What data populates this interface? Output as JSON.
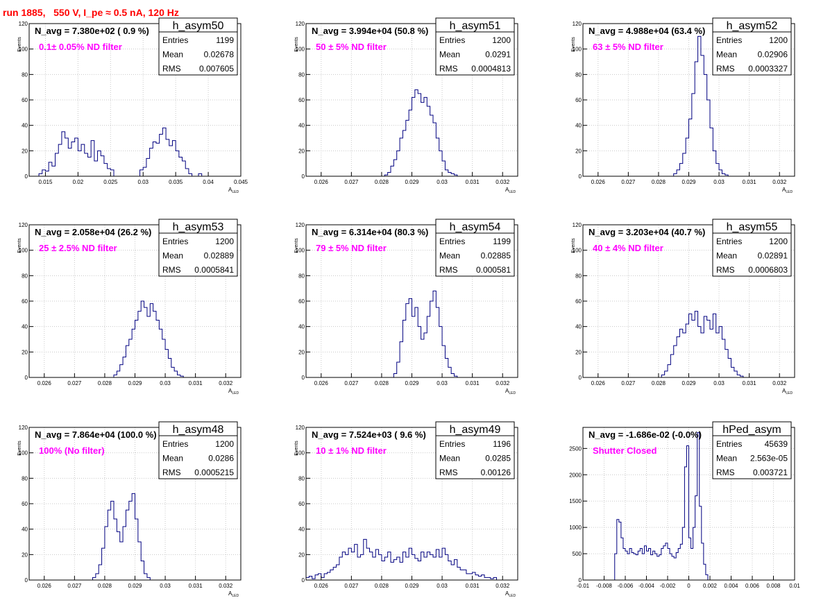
{
  "run_title": "run 1885,   550 V, I_pe ≈ 0.5 nA, 120 Hz",
  "chart_data": [
    {
      "type": "histogram",
      "name": "h_asym50",
      "navg_label": "N_avg = 7.380e+02 ( 0.9 %)",
      "filter_label": "0.1± 0.05% ND filter",
      "stats": [
        [
          "Entries",
          "1199"
        ],
        [
          "Mean",
          "0.02678"
        ],
        [
          "RMS",
          "0.007605"
        ]
      ],
      "ylabel": "Events",
      "xlabel": "A_LED",
      "xlim": [
        0.0125,
        0.045
      ],
      "ylim": [
        0,
        120
      ],
      "xticks": [
        0.015,
        0.02,
        0.025,
        0.03,
        0.035,
        0.04,
        0.045
      ],
      "xtick_labels": [
        "0.015",
        "0.02",
        "0.025",
        "0.03",
        "0.035",
        "0.04",
        "0.045"
      ],
      "yticks": [
        0,
        20,
        40,
        60,
        80,
        100,
        120
      ],
      "ytick_labels": [
        "0",
        "20",
        "40",
        "60",
        "80",
        "100",
        "120"
      ],
      "bin_start": 0.0125,
      "bin_width": 0.0005,
      "counts": [
        0,
        0,
        0,
        2,
        5,
        4,
        11,
        8,
        18,
        25,
        35,
        30,
        22,
        27,
        30,
        20,
        25,
        18,
        15,
        28,
        12,
        20,
        16,
        10,
        6,
        5,
        0,
        0,
        0,
        0,
        0,
        0,
        0,
        0,
        5,
        7,
        14,
        22,
        27,
        26,
        33,
        38,
        29,
        24,
        28,
        20,
        15,
        12,
        6,
        2,
        0,
        0,
        2,
        0,
        0,
        0,
        0,
        0,
        0,
        0,
        0,
        0,
        0,
        0,
        0
      ]
    },
    {
      "type": "histogram",
      "name": "h_asym51",
      "navg_label": "N_avg = 3.994e+04 (50.8 %)",
      "filter_label": "50 ± 5% ND filter",
      "stats": [
        [
          "Entries",
          "1200"
        ],
        [
          "Mean",
          "0.0291"
        ],
        [
          "RMS",
          "0.0004813"
        ]
      ],
      "ylabel": "Events",
      "xlabel": "A_LED",
      "xlim": [
        0.0255,
        0.0325
      ],
      "ylim": [
        0,
        120
      ],
      "xticks": [
        0.026,
        0.027,
        0.028,
        0.029,
        0.03,
        0.031,
        0.032
      ],
      "xtick_labels": [
        "0.026",
        "0.027",
        "0.028",
        "0.029",
        "0.03",
        "0.031",
        "0.032"
      ],
      "yticks": [
        0,
        20,
        40,
        60,
        80,
        100,
        120
      ],
      "ytick_labels": [
        "0",
        "20",
        "40",
        "60",
        "80",
        "100",
        "120"
      ],
      "bin_start": 0.0255,
      "bin_width": 0.0001,
      "counts": [
        0,
        0,
        0,
        0,
        0,
        0,
        0,
        0,
        0,
        0,
        0,
        0,
        0,
        0,
        0,
        0,
        0,
        0,
        0,
        0,
        0,
        0,
        0,
        0,
        0,
        0,
        1,
        3,
        8,
        13,
        20,
        30,
        36,
        44,
        52,
        62,
        68,
        65,
        58,
        62,
        55,
        48,
        42,
        30,
        20,
        12,
        5,
        3,
        2,
        1,
        0,
        0,
        0,
        0,
        0,
        0,
        0,
        0,
        0,
        0,
        0,
        0,
        0,
        0,
        0,
        0,
        0,
        0,
        0,
        0
      ]
    },
    {
      "type": "histogram",
      "name": "h_asym52",
      "navg_label": "N_avg = 4.988e+04 (63.4 %)",
      "filter_label": "63 ± 5% ND filter",
      "stats": [
        [
          "Entries",
          "1200"
        ],
        [
          "Mean",
          "0.02906"
        ],
        [
          "RMS",
          "0.0003327"
        ]
      ],
      "ylabel": "Events",
      "xlabel": "A_LED",
      "xlim": [
        0.0255,
        0.0325
      ],
      "ylim": [
        0,
        120
      ],
      "xticks": [
        0.026,
        0.027,
        0.028,
        0.029,
        0.03,
        0.031,
        0.032
      ],
      "xtick_labels": [
        "0.026",
        "0.027",
        "0.028",
        "0.029",
        "0.03",
        "0.031",
        "0.032"
      ],
      "yticks": [
        0,
        20,
        40,
        60,
        80,
        100,
        120
      ],
      "ytick_labels": [
        "0",
        "20",
        "40",
        "60",
        "80",
        "100",
        "120"
      ],
      "bin_start": 0.0255,
      "bin_width": 0.0001,
      "counts": [
        0,
        0,
        0,
        0,
        0,
        0,
        0,
        0,
        0,
        0,
        0,
        0,
        0,
        0,
        0,
        0,
        0,
        0,
        0,
        0,
        0,
        0,
        0,
        0,
        0,
        0,
        0,
        0,
        0,
        0,
        2,
        5,
        10,
        18,
        30,
        45,
        65,
        90,
        110,
        95,
        80,
        60,
        38,
        20,
        10,
        5,
        2,
        1,
        0,
        0,
        0,
        0,
        0,
        0,
        0,
        0,
        0,
        0,
        0,
        0,
        0,
        0,
        0,
        0,
        0,
        0,
        0,
        0,
        0,
        0
      ]
    },
    {
      "type": "histogram",
      "name": "h_asym53",
      "navg_label": "N_avg = 2.058e+04 (26.2 %)",
      "filter_label": "25 ± 2.5% ND filter",
      "stats": [
        [
          "Entries",
          "1200"
        ],
        [
          "Mean",
          "0.02889"
        ],
        [
          "RMS",
          "0.0005841"
        ]
      ],
      "ylabel": "Events",
      "xlabel": "A_LED",
      "xlim": [
        0.0255,
        0.0325
      ],
      "ylim": [
        0,
        120
      ],
      "xticks": [
        0.026,
        0.027,
        0.028,
        0.029,
        0.03,
        0.031,
        0.032
      ],
      "xtick_labels": [
        "0.026",
        "0.027",
        "0.028",
        "0.029",
        "0.03",
        "0.031",
        "0.032"
      ],
      "yticks": [
        0,
        20,
        40,
        60,
        80,
        100,
        120
      ],
      "ytick_labels": [
        "0",
        "20",
        "40",
        "60",
        "80",
        "100",
        "120"
      ],
      "bin_start": 0.0255,
      "bin_width": 0.0001,
      "counts": [
        0,
        0,
        0,
        0,
        0,
        0,
        0,
        0,
        0,
        0,
        0,
        0,
        0,
        0,
        0,
        0,
        0,
        0,
        0,
        0,
        0,
        0,
        0,
        0,
        0,
        0,
        0,
        0,
        2,
        5,
        10,
        16,
        25,
        30,
        38,
        45,
        52,
        60,
        55,
        48,
        58,
        52,
        45,
        38,
        30,
        22,
        15,
        8,
        5,
        2,
        1,
        0,
        0,
        0,
        0,
        0,
        0,
        0,
        0,
        0,
        0,
        0,
        0,
        0,
        0,
        0,
        0,
        0,
        0,
        0
      ]
    },
    {
      "type": "histogram",
      "name": "h_asym54",
      "navg_label": "N_avg = 6.314e+04 (80.3 %)",
      "filter_label": "79 ± 5% ND filter",
      "stats": [
        [
          "Entries",
          "1199"
        ],
        [
          "Mean",
          "0.02885"
        ],
        [
          "RMS",
          "0.000581"
        ]
      ],
      "ylabel": "Events",
      "xlabel": "A_LED",
      "xlim": [
        0.0255,
        0.0325
      ],
      "ylim": [
        0,
        120
      ],
      "xticks": [
        0.026,
        0.027,
        0.028,
        0.029,
        0.03,
        0.031,
        0.032
      ],
      "xtick_labels": [
        "0.026",
        "0.027",
        "0.028",
        "0.029",
        "0.03",
        "0.031",
        "0.032"
      ],
      "yticks": [
        0,
        20,
        40,
        60,
        80,
        100,
        120
      ],
      "ytick_labels": [
        "0",
        "20",
        "40",
        "60",
        "80",
        "100",
        "120"
      ],
      "bin_start": 0.0255,
      "bin_width": 0.0001,
      "counts": [
        0,
        0,
        0,
        0,
        0,
        0,
        0,
        0,
        0,
        0,
        0,
        0,
        0,
        0,
        0,
        0,
        0,
        0,
        0,
        0,
        0,
        0,
        0,
        0,
        0,
        0,
        0,
        0,
        0,
        3,
        12,
        28,
        45,
        58,
        62,
        48,
        55,
        40,
        30,
        35,
        48,
        60,
        68,
        55,
        40,
        25,
        15,
        8,
        3,
        1,
        0,
        0,
        0,
        0,
        0,
        0,
        0,
        0,
        0,
        0,
        0,
        0,
        0,
        0,
        0,
        0,
        0,
        0,
        0,
        0
      ]
    },
    {
      "type": "histogram",
      "name": "h_asym55",
      "navg_label": "N_avg = 3.203e+04 (40.7 %)",
      "filter_label": "40 ± 4% ND filter",
      "stats": [
        [
          "Entries",
          "1200"
        ],
        [
          "Mean",
          "0.02891"
        ],
        [
          "RMS",
          "0.0006803"
        ]
      ],
      "ylabel": "Events",
      "xlabel": "A_LED",
      "xlim": [
        0.0255,
        0.0325
      ],
      "ylim": [
        0,
        120
      ],
      "xticks": [
        0.026,
        0.027,
        0.028,
        0.029,
        0.03,
        0.031,
        0.032
      ],
      "xtick_labels": [
        "0.026",
        "0.027",
        "0.028",
        "0.029",
        "0.03",
        "0.031",
        "0.032"
      ],
      "yticks": [
        0,
        20,
        40,
        60,
        80,
        100,
        120
      ],
      "ytick_labels": [
        "0",
        "20",
        "40",
        "60",
        "80",
        "100",
        "120"
      ],
      "bin_start": 0.0255,
      "bin_width": 0.0001,
      "counts": [
        0,
        0,
        0,
        0,
        0,
        0,
        0,
        0,
        0,
        0,
        0,
        0,
        0,
        0,
        0,
        0,
        0,
        0,
        0,
        0,
        0,
        0,
        0,
        0,
        0,
        0,
        2,
        5,
        10,
        18,
        25,
        32,
        38,
        35,
        42,
        50,
        45,
        52,
        40,
        35,
        48,
        45,
        38,
        50,
        35,
        40,
        30,
        22,
        15,
        8,
        5,
        2,
        1,
        0,
        0,
        0,
        0,
        0,
        0,
        0,
        0,
        0,
        0,
        0,
        0,
        0,
        0,
        0,
        0,
        0
      ]
    },
    {
      "type": "histogram",
      "name": "h_asym48",
      "navg_label": "N_avg = 7.864e+04 (100.0 %)",
      "filter_label": "100% (No filter)",
      "stats": [
        [
          "Entries",
          "1200"
        ],
        [
          "Mean",
          "0.0286"
        ],
        [
          "RMS",
          "0.0005215"
        ]
      ],
      "ylabel": "Events",
      "xlabel": "A_LED",
      "xlim": [
        0.0255,
        0.0325
      ],
      "ylim": [
        0,
        120
      ],
      "xticks": [
        0.026,
        0.027,
        0.028,
        0.029,
        0.03,
        0.031,
        0.032
      ],
      "xtick_labels": [
        "0.026",
        "0.027",
        "0.028",
        "0.029",
        "0.03",
        "0.031",
        "0.032"
      ],
      "yticks": [
        0,
        20,
        40,
        60,
        80,
        100,
        120
      ],
      "ytick_labels": [
        "0",
        "20",
        "40",
        "60",
        "80",
        "100",
        "120"
      ],
      "bin_start": 0.0255,
      "bin_width": 0.0001,
      "counts": [
        0,
        0,
        0,
        0,
        0,
        0,
        0,
        0,
        0,
        0,
        0,
        0,
        0,
        0,
        0,
        0,
        0,
        0,
        0,
        0,
        0,
        2,
        5,
        12,
        25,
        42,
        55,
        62,
        48,
        38,
        30,
        42,
        55,
        62,
        68,
        48,
        30,
        15,
        5,
        2,
        0,
        0,
        0,
        0,
        0,
        0,
        0,
        0,
        0,
        0,
        0,
        0,
        0,
        0,
        0,
        0,
        0,
        0,
        0,
        0,
        0,
        0,
        0,
        0,
        0,
        0,
        0,
        0,
        0,
        0
      ]
    },
    {
      "type": "histogram",
      "name": "h_asym49",
      "navg_label": "N_avg = 7.524e+03 ( 9.6 %)",
      "filter_label": "10 ± 1% ND filter",
      "stats": [
        [
          "Entries",
          "1196"
        ],
        [
          "Mean",
          "0.0285"
        ],
        [
          "RMS",
          "0.00126"
        ]
      ],
      "ylabel": "Events",
      "xlabel": "A_LED",
      "xlim": [
        0.0255,
        0.0325
      ],
      "ylim": [
        0,
        120
      ],
      "xticks": [
        0.026,
        0.027,
        0.028,
        0.029,
        0.03,
        0.031,
        0.032
      ],
      "xtick_labels": [
        "0.026",
        "0.027",
        "0.028",
        "0.029",
        "0.03",
        "0.031",
        "0.032"
      ],
      "yticks": [
        0,
        20,
        40,
        60,
        80,
        100,
        120
      ],
      "ytick_labels": [
        "0",
        "20",
        "40",
        "60",
        "80",
        "100",
        "120"
      ],
      "bin_start": 0.0255,
      "bin_width": 0.0001,
      "counts": [
        2,
        3,
        1,
        4,
        5,
        2,
        5,
        6,
        8,
        10,
        12,
        18,
        22,
        20,
        25,
        22,
        28,
        18,
        20,
        32,
        25,
        22,
        18,
        24,
        20,
        15,
        18,
        22,
        14,
        16,
        18,
        14,
        22,
        18,
        25,
        20,
        17,
        15,
        22,
        18,
        22,
        20,
        18,
        24,
        18,
        25,
        20,
        15,
        12,
        16,
        10,
        8,
        8,
        5,
        5,
        6,
        4,
        3,
        4,
        2,
        2,
        1,
        2,
        0,
        0,
        0,
        0,
        0,
        0,
        0
      ]
    },
    {
      "type": "histogram",
      "name": "hPed_asym",
      "navg_label": "N_avg = -1.686e-02 (-0.0%)",
      "filter_label": "Shutter Closed",
      "stats": [
        [
          "Entries",
          "45639"
        ],
        [
          "Mean",
          "2.563e-05"
        ],
        [
          "RMS",
          "0.003721"
        ]
      ],
      "ylabel": "",
      "xlabel": "",
      "xlim": [
        -0.01,
        0.01
      ],
      "ylim": [
        0,
        2900
      ],
      "xticks": [
        -0.01,
        -0.008,
        -0.006,
        -0.004,
        -0.002,
        0,
        0.002,
        0.004,
        0.006,
        0.008,
        0.01
      ],
      "xtick_labels": [
        "-0.01",
        "-0.008",
        "-0.006",
        "-0.004",
        "-0.002",
        "0",
        "0.002",
        "0.004",
        "0.006",
        "0.008",
        "0.01"
      ],
      "yticks": [
        0,
        500,
        1000,
        1500,
        2000,
        2500
      ],
      "ytick_labels": [
        "0",
        "500",
        "1000",
        "1500",
        "2000",
        "2500"
      ],
      "bin_start": -0.01,
      "bin_width": 0.0002,
      "counts": [
        0,
        0,
        0,
        0,
        0,
        0,
        0,
        0,
        0,
        0,
        0,
        0,
        0,
        0,
        0,
        500,
        1150,
        1100,
        800,
        600,
        550,
        500,
        600,
        520,
        500,
        480,
        550,
        600,
        500,
        650,
        550,
        600,
        480,
        550,
        500,
        450,
        480,
        600,
        650,
        700,
        600,
        500,
        450,
        420,
        520,
        600,
        680,
        1000,
        2150,
        2550,
        800,
        600,
        1000,
        1600,
        2800,
        1400,
        700,
        300,
        100,
        0,
        0,
        0,
        0,
        0,
        0,
        0,
        0,
        0,
        0,
        0,
        0,
        0,
        0,
        0,
        0,
        0,
        0,
        0,
        0,
        0,
        0,
        0,
        0,
        0,
        0,
        0,
        0,
        0,
        0,
        0,
        0,
        0,
        0,
        0,
        0,
        0,
        0,
        0,
        0,
        0
      ]
    }
  ],
  "colors": {
    "histogram_line": "#000080",
    "navg_text": "#000000",
    "filter_text": "#ff00ff",
    "run_title": "#ff0000",
    "grid": "#c8c8c8",
    "frame": "#000000"
  }
}
